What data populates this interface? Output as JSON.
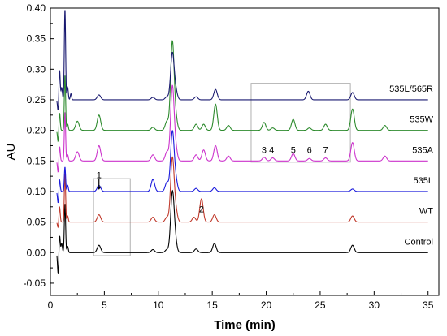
{
  "chart_data": {
    "type": "line",
    "xlabel": "Time (min)",
    "ylabel": "AU",
    "xlim": [
      0,
      36
    ],
    "ylim": [
      -0.07,
      0.4
    ],
    "x_ticks": [
      0,
      5,
      10,
      15,
      20,
      25,
      30,
      35
    ],
    "y_ticks": [
      -0.05,
      0.0,
      0.05,
      0.1,
      0.15,
      0.2,
      0.25,
      0.3,
      0.35,
      0.4
    ],
    "x_tick_labels": [
      "0",
      "5",
      "10",
      "15",
      "20",
      "25",
      "30",
      "35"
    ],
    "y_tick_labels": [
      "-0.05",
      "0.00",
      "0.05",
      "0.10",
      "0.15",
      "0.20",
      "0.25",
      "0.30",
      "0.35",
      "0.40"
    ],
    "grid": false,
    "series": [
      {
        "name": "Control",
        "color": "#000000",
        "baseline": 0.0,
        "peaks": [
          [
            0.72,
            -0.036
          ],
          [
            0.85,
            0.03
          ],
          [
            1.05,
            0.015
          ],
          [
            1.35,
            0.08
          ],
          [
            1.6,
            0.01
          ],
          [
            4.5,
            0.012
          ],
          [
            9.5,
            0.005
          ],
          [
            10.8,
            0.005
          ],
          [
            11.3,
            0.095
          ],
          [
            11.55,
            0.02
          ],
          [
            13.5,
            0.006
          ],
          [
            15.2,
            0.015
          ],
          [
            28.0,
            0.012
          ]
        ]
      },
      {
        "name": "WT",
        "color": "#c0392b",
        "baseline": 0.05,
        "peaks": [
          [
            0.72,
            -0.01
          ],
          [
            0.85,
            0.025
          ],
          [
            1.35,
            0.08
          ],
          [
            1.6,
            0.01
          ],
          [
            4.5,
            0.012
          ],
          [
            9.5,
            0.008
          ],
          [
            10.8,
            0.008
          ],
          [
            11.3,
            0.103
          ],
          [
            11.6,
            0.02
          ],
          [
            13.3,
            0.008
          ],
          [
            14.0,
            0.038
          ],
          [
            15.2,
            0.012
          ],
          [
            28.0,
            0.01
          ]
        ]
      },
      {
        "name": "535L",
        "color": "#1a1adc",
        "baseline": 0.1,
        "peaks": [
          [
            0.72,
            -0.02
          ],
          [
            0.85,
            0.02
          ],
          [
            1.35,
            0.04
          ],
          [
            1.6,
            0.01
          ],
          [
            4.5,
            0.01
          ],
          [
            9.5,
            0.02
          ],
          [
            10.8,
            0.015
          ],
          [
            11.3,
            0.096
          ],
          [
            11.6,
            0.02
          ],
          [
            13.5,
            0.005
          ],
          [
            15.2,
            0.006
          ],
          [
            28.0,
            0.004
          ]
        ]
      },
      {
        "name": "535A",
        "color": "#cc33cc",
        "baseline": 0.15,
        "peaks": [
          [
            0.72,
            -0.02
          ],
          [
            0.85,
            0.025
          ],
          [
            1.35,
            0.08
          ],
          [
            1.6,
            0.01
          ],
          [
            2.5,
            0.015
          ],
          [
            4.5,
            0.025
          ],
          [
            9.5,
            0.01
          ],
          [
            10.8,
            0.015
          ],
          [
            11.3,
            0.12
          ],
          [
            11.6,
            0.02
          ],
          [
            13.5,
            0.01
          ],
          [
            14.2,
            0.018
          ],
          [
            15.3,
            0.025
          ],
          [
            16.5,
            0.008
          ],
          [
            19.8,
            0.006
          ],
          [
            20.6,
            0.005
          ],
          [
            22.5,
            0.012
          ],
          [
            24.0,
            0.004
          ],
          [
            25.5,
            0.005
          ],
          [
            28.0,
            0.03
          ],
          [
            31.0,
            0.008
          ]
        ]
      },
      {
        "name": "535W",
        "color": "#2e8b2e",
        "baseline": 0.2,
        "peaks": [
          [
            0.72,
            -0.02
          ],
          [
            0.85,
            0.03
          ],
          [
            1.35,
            0.09
          ],
          [
            1.6,
            0.01
          ],
          [
            2.5,
            0.015
          ],
          [
            4.5,
            0.025
          ],
          [
            9.5,
            0.005
          ],
          [
            10.8,
            0.015
          ],
          [
            11.3,
            0.143
          ],
          [
            11.6,
            0.02
          ],
          [
            13.5,
            0.01
          ],
          [
            14.2,
            0.01
          ],
          [
            15.3,
            0.043
          ],
          [
            16.5,
            0.008
          ],
          [
            19.8,
            0.013
          ],
          [
            20.6,
            0.004
          ],
          [
            22.5,
            0.018
          ],
          [
            24.0,
            0.004
          ],
          [
            25.5,
            0.01
          ],
          [
            28.0,
            0.035
          ],
          [
            31.0,
            0.008
          ]
        ]
      },
      {
        "name": "535L/565R",
        "color": "#191970",
        "baseline": 0.25,
        "peaks": [
          [
            0.72,
            -0.02
          ],
          [
            0.85,
            0.05
          ],
          [
            1.05,
            0.02
          ],
          [
            1.35,
            0.148
          ],
          [
            1.6,
            0.02
          ],
          [
            1.9,
            0.01
          ],
          [
            4.5,
            0.008
          ],
          [
            9.5,
            0.004
          ],
          [
            10.8,
            0.005
          ],
          [
            11.3,
            0.075
          ],
          [
            11.6,
            0.015
          ],
          [
            13.5,
            0.005
          ],
          [
            15.3,
            0.017
          ],
          [
            23.9,
            0.014
          ],
          [
            28.0,
            0.012
          ]
        ]
      }
    ],
    "annotations": [
      {
        "text": "1",
        "x": 4.5,
        "y": 0.122
      },
      {
        "text": "2",
        "x": 14.0,
        "y": 0.066
      },
      {
        "text": "3",
        "x": 19.8,
        "y": 0.163
      },
      {
        "text": "4",
        "x": 20.5,
        "y": 0.163
      },
      {
        "text": "5",
        "x": 22.5,
        "y": 0.163
      },
      {
        "text": "6",
        "x": 24.0,
        "y": 0.163
      },
      {
        "text": "7",
        "x": 25.5,
        "y": 0.163
      }
    ],
    "highlight_boxes": [
      {
        "x0": 4.0,
        "x1": 7.4,
        "y0": -0.005,
        "y1": 0.121
      },
      {
        "x0": 18.6,
        "x1": 27.8,
        "y0": 0.148,
        "y1": 0.277
      }
    ]
  }
}
